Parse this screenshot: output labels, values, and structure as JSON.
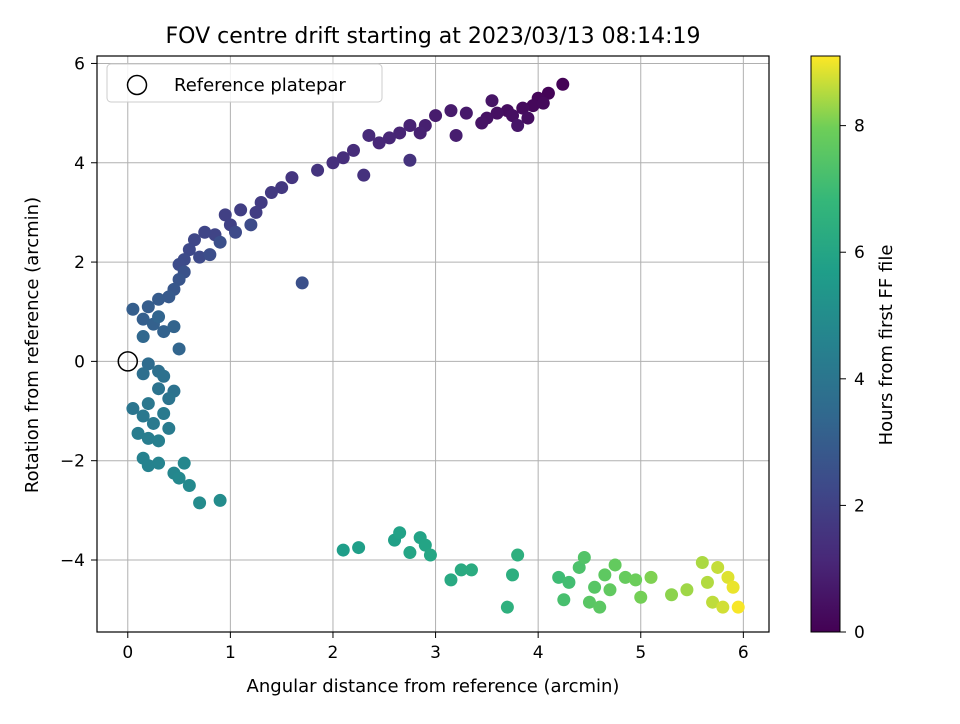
{
  "chart_data": {
    "type": "scatter",
    "title": "FOV centre drift starting at 2023/03/13 08:14:19",
    "xlabel": "Angular distance from reference (arcmin)",
    "ylabel": "Rotation from reference (arcmin)",
    "xlim": [
      -0.3,
      6.25
    ],
    "ylim": [
      -5.45,
      6.15
    ],
    "xticks": [
      0,
      1,
      2,
      3,
      4,
      5,
      6
    ],
    "yticks": [
      -4,
      -2,
      0,
      2,
      4,
      6
    ],
    "grid": true,
    "legend": {
      "placement": "top-left",
      "entries": [
        "Reference platepar"
      ]
    },
    "reference_point": {
      "label": "Reference platepar",
      "x": 0.0,
      "y": 0.0
    },
    "colorbar": {
      "label": "Hours from first FF file",
      "range": [
        0,
        9.1
      ],
      "ticks": [
        0,
        2,
        4,
        6,
        8
      ],
      "colormap": "viridis"
    },
    "series": [
      {
        "value_name": "Hours from first FF file",
        "points": [
          [
            4.24,
            5.58,
            0.05
          ],
          [
            4.1,
            5.4,
            0.1
          ],
          [
            4.0,
            5.3,
            0.15
          ],
          [
            3.95,
            5.15,
            0.2
          ],
          [
            4.05,
            5.2,
            0.22
          ],
          [
            3.85,
            5.1,
            0.3
          ],
          [
            3.7,
            5.05,
            0.35
          ],
          [
            3.9,
            4.9,
            0.38
          ],
          [
            3.75,
            4.95,
            0.42
          ],
          [
            3.6,
            5.0,
            0.45
          ],
          [
            3.5,
            4.9,
            0.5
          ],
          [
            3.45,
            4.8,
            0.55
          ],
          [
            3.55,
            5.25,
            0.58
          ],
          [
            3.8,
            4.75,
            0.62
          ],
          [
            3.3,
            5.0,
            0.7
          ],
          [
            3.15,
            5.05,
            0.75
          ],
          [
            3.0,
            4.95,
            0.8
          ],
          [
            3.2,
            4.55,
            0.85
          ],
          [
            2.9,
            4.75,
            0.9
          ],
          [
            2.85,
            4.6,
            0.95
          ],
          [
            2.75,
            4.75,
            1.0
          ],
          [
            2.65,
            4.6,
            1.05
          ],
          [
            2.55,
            4.5,
            1.1
          ],
          [
            2.45,
            4.4,
            1.15
          ],
          [
            2.35,
            4.55,
            1.2
          ],
          [
            2.2,
            4.25,
            1.3
          ],
          [
            2.1,
            4.1,
            1.35
          ],
          [
            2.0,
            4.0,
            1.4
          ],
          [
            2.3,
            3.75,
            1.45
          ],
          [
            2.75,
            4.05,
            1.5
          ],
          [
            1.85,
            3.85,
            1.55
          ],
          [
            1.6,
            3.7,
            1.6
          ],
          [
            1.5,
            3.5,
            1.7
          ],
          [
            1.4,
            3.4,
            1.75
          ],
          [
            1.3,
            3.2,
            1.8
          ],
          [
            1.25,
            3.0,
            1.85
          ],
          [
            1.1,
            3.05,
            1.9
          ],
          [
            0.95,
            2.95,
            1.95
          ],
          [
            1.0,
            2.75,
            2.0
          ],
          [
            0.85,
            2.55,
            2.1
          ],
          [
            0.75,
            2.6,
            2.15
          ],
          [
            0.65,
            2.45,
            2.2
          ],
          [
            0.6,
            2.25,
            2.25
          ],
          [
            0.7,
            2.1,
            2.3
          ],
          [
            0.55,
            2.05,
            2.35
          ],
          [
            0.5,
            1.95,
            2.4
          ],
          [
            0.8,
            2.15,
            2.45
          ],
          [
            0.9,
            2.4,
            2.5
          ],
          [
            1.2,
            2.75,
            2.35
          ],
          [
            1.05,
            2.6,
            2.3
          ],
          [
            0.55,
            1.8,
            2.6
          ],
          [
            1.7,
            1.58,
            2.55
          ],
          [
            0.5,
            1.65,
            2.7
          ],
          [
            0.45,
            1.45,
            2.8
          ],
          [
            0.4,
            1.3,
            2.9
          ],
          [
            0.3,
            1.25,
            2.95
          ],
          [
            0.2,
            1.1,
            3.0
          ],
          [
            0.05,
            1.05,
            3.05
          ],
          [
            0.15,
            0.85,
            3.1
          ],
          [
            0.25,
            0.75,
            3.15
          ],
          [
            0.35,
            0.6,
            3.2
          ],
          [
            0.45,
            0.7,
            3.25
          ],
          [
            0.3,
            0.9,
            3.3
          ],
          [
            0.5,
            0.25,
            3.35
          ],
          [
            0.15,
            0.5,
            3.4
          ],
          [
            0.2,
            -0.05,
            3.6
          ],
          [
            0.15,
            -0.25,
            3.7
          ],
          [
            0.3,
            -0.2,
            3.75
          ],
          [
            0.35,
            -0.3,
            3.8
          ],
          [
            0.45,
            -0.6,
            3.85
          ],
          [
            0.3,
            -0.55,
            3.9
          ],
          [
            0.4,
            -0.75,
            3.95
          ],
          [
            0.05,
            -0.95,
            4.0
          ],
          [
            0.2,
            -0.85,
            4.05
          ],
          [
            0.15,
            -1.1,
            4.1
          ],
          [
            0.25,
            -1.25,
            4.15
          ],
          [
            0.35,
            -1.05,
            4.2
          ],
          [
            0.4,
            -1.35,
            4.25
          ],
          [
            0.1,
            -1.45,
            4.3
          ],
          [
            0.2,
            -1.55,
            4.35
          ],
          [
            0.3,
            -1.6,
            4.4
          ],
          [
            0.15,
            -1.95,
            4.5
          ],
          [
            0.2,
            -2.1,
            4.55
          ],
          [
            0.3,
            -2.05,
            4.6
          ],
          [
            0.45,
            -2.25,
            4.7
          ],
          [
            0.55,
            -2.05,
            4.75
          ],
          [
            0.5,
            -2.35,
            4.8
          ],
          [
            0.6,
            -2.5,
            4.85
          ],
          [
            0.7,
            -2.85,
            4.9
          ],
          [
            0.9,
            -2.8,
            4.95
          ],
          [
            2.1,
            -3.8,
            5.7
          ],
          [
            2.25,
            -3.75,
            5.75
          ],
          [
            2.6,
            -3.6,
            5.8
          ],
          [
            2.65,
            -3.45,
            5.85
          ],
          [
            2.85,
            -3.55,
            5.9
          ],
          [
            2.9,
            -3.7,
            5.95
          ],
          [
            2.75,
            -3.85,
            6.0
          ],
          [
            2.95,
            -3.9,
            6.05
          ],
          [
            3.15,
            -4.4,
            6.2
          ],
          [
            3.25,
            -4.2,
            6.25
          ],
          [
            3.35,
            -4.2,
            6.3
          ],
          [
            3.75,
            -4.3,
            6.4
          ],
          [
            3.8,
            -3.9,
            6.45
          ],
          [
            3.7,
            -4.95,
            6.5
          ],
          [
            4.2,
            -4.35,
            7.0
          ],
          [
            4.3,
            -4.45,
            7.1
          ],
          [
            4.25,
            -4.8,
            7.2
          ],
          [
            4.4,
            -4.15,
            7.3
          ],
          [
            4.45,
            -3.95,
            7.4
          ],
          [
            4.55,
            -4.55,
            7.5
          ],
          [
            4.5,
            -4.85,
            7.55
          ],
          [
            4.6,
            -4.95,
            7.6
          ],
          [
            4.65,
            -4.3,
            7.65
          ],
          [
            4.7,
            -4.6,
            7.7
          ],
          [
            4.75,
            -4.1,
            7.75
          ],
          [
            4.85,
            -4.35,
            7.8
          ],
          [
            4.95,
            -4.4,
            7.9
          ],
          [
            5.0,
            -4.75,
            8.0
          ],
          [
            5.1,
            -4.35,
            8.1
          ],
          [
            5.3,
            -4.7,
            8.2
          ],
          [
            5.45,
            -4.6,
            8.35
          ],
          [
            5.6,
            -4.05,
            8.45
          ],
          [
            5.65,
            -4.45,
            8.5
          ],
          [
            5.7,
            -4.85,
            8.6
          ],
          [
            5.75,
            -4.15,
            8.65
          ],
          [
            5.8,
            -4.95,
            8.75
          ],
          [
            5.85,
            -4.35,
            8.85
          ],
          [
            5.9,
            -4.55,
            8.95
          ],
          [
            5.95,
            -4.95,
            9.05
          ]
        ]
      }
    ]
  }
}
